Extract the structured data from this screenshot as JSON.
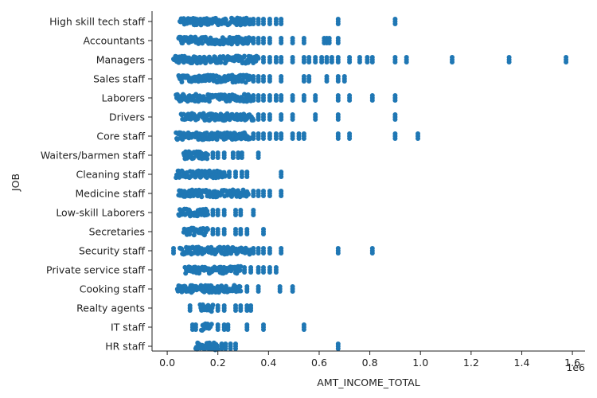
{
  "chart_data": {
    "type": "scatter",
    "xlabel": "AMT_INCOME_TOTAL",
    "ylabel": "JOB",
    "x_offset_label": "1e6",
    "xlim": [
      -60000,
      1650000
    ],
    "xticks": [
      0,
      200000,
      400000,
      600000,
      800000,
      1000000,
      1200000,
      1400000,
      1600000
    ],
    "xtick_labels": [
      "0.0",
      "0.2",
      "0.4",
      "0.6",
      "0.8",
      "1.0",
      "1.2",
      "1.4",
      "1.6"
    ],
    "grid": false,
    "point_color": "#1f77b4",
    "categories": [
      "High skill tech staff",
      "Accountants",
      "Managers",
      "Sales staff",
      "Laborers",
      "Drivers",
      "Core staff",
      "Waiters/barmen staff",
      "Cleaning staff",
      "Medicine staff",
      "Low-skill Laborers",
      "Secretaries",
      "Security staff",
      "Private service staff",
      "Cooking staff",
      "Realty agents",
      "IT staff",
      "HR staff"
    ],
    "series": [
      {
        "category": "High skill tech staff",
        "dense_range": [
          50000,
          330000
        ],
        "x": [
          340000,
          360000,
          380000,
          405000,
          430000,
          450000,
          675000,
          900000
        ]
      },
      {
        "category": "Accountants",
        "dense_range": [
          45000,
          330000
        ],
        "x": [
          340000,
          360000,
          380000,
          405000,
          450000,
          495000,
          540000,
          620000,
          630000,
          640000,
          675000
        ]
      },
      {
        "category": "Managers",
        "dense_range": [
          25000,
          360000
        ],
        "x": [
          380000,
          405000,
          430000,
          450000,
          495000,
          540000,
          560000,
          585000,
          610000,
          630000,
          650000,
          675000,
          720000,
          760000,
          790000,
          810000,
          900000,
          945000,
          1125000,
          1350000,
          1575000
        ]
      },
      {
        "category": "Sales staff",
        "dense_range": [
          45000,
          330000
        ],
        "x": [
          340000,
          360000,
          380000,
          405000,
          450000,
          540000,
          560000,
          630000,
          675000,
          700000
        ]
      },
      {
        "category": "Laborers",
        "dense_range": [
          35000,
          330000
        ],
        "x": [
          340000,
          360000,
          380000,
          405000,
          430000,
          450000,
          495000,
          540000,
          585000,
          675000,
          720000,
          810000,
          900000
        ]
      },
      {
        "category": "Drivers",
        "dense_range": [
          55000,
          340000
        ],
        "x": [
          360000,
          380000,
          405000,
          450000,
          495000,
          585000,
          675000,
          900000
        ]
      },
      {
        "category": "Core staff",
        "dense_range": [
          35000,
          330000
        ],
        "x": [
          340000,
          360000,
          380000,
          405000,
          430000,
          450000,
          495000,
          520000,
          540000,
          675000,
          720000,
          900000,
          990000
        ]
      },
      {
        "category": "Waiters/barmen staff",
        "dense_range": [
          65000,
          160000
        ],
        "x": [
          180000,
          200000,
          225000,
          260000,
          280000,
          295000,
          360000
        ]
      },
      {
        "category": "Cleaning staff",
        "dense_range": [
          35000,
          230000
        ],
        "x": [
          245000,
          270000,
          295000,
          315000,
          450000
        ]
      },
      {
        "category": "Medicine staff",
        "dense_range": [
          45000,
          320000
        ],
        "x": [
          340000,
          360000,
          380000,
          405000,
          450000
        ]
      },
      {
        "category": "Low-skill Laborers",
        "dense_range": [
          45000,
          160000
        ],
        "x": [
          180000,
          200000,
          225000,
          270000,
          290000,
          340000
        ]
      },
      {
        "category": "Secretaries",
        "dense_range": [
          65000,
          160000
        ],
        "x": [
          180000,
          200000,
          225000,
          270000,
          290000,
          315000,
          380000
        ]
      },
      {
        "category": "Security staff",
        "dense_range": [
          50000,
          330000
        ],
        "x": [
          25000,
          340000,
          360000,
          380000,
          405000,
          450000,
          675000,
          810000
        ]
      },
      {
        "category": "Private service staff",
        "dense_range": [
          70000,
          290000
        ],
        "x": [
          305000,
          330000,
          360000,
          380000,
          405000,
          430000
        ]
      },
      {
        "category": "Cooking staff",
        "dense_range": [
          40000,
          290000
        ],
        "x": [
          315000,
          360000,
          445000,
          495000
        ]
      },
      {
        "category": "Realty agents",
        "dense_range": [
          130000,
          180000
        ],
        "x": [
          90000,
          200000,
          225000,
          270000,
          290000,
          315000,
          330000
        ]
      },
      {
        "category": "IT staff",
        "dense_range": [
          135000,
          175000
        ],
        "x": [
          100000,
          112500,
          200000,
          225000,
          240000,
          315000,
          380000,
          540000
        ]
      },
      {
        "category": "HR staff",
        "dense_range": [
          112500,
          200000
        ],
        "x": [
          215000,
          230000,
          250000,
          270000,
          675000
        ]
      }
    ]
  }
}
